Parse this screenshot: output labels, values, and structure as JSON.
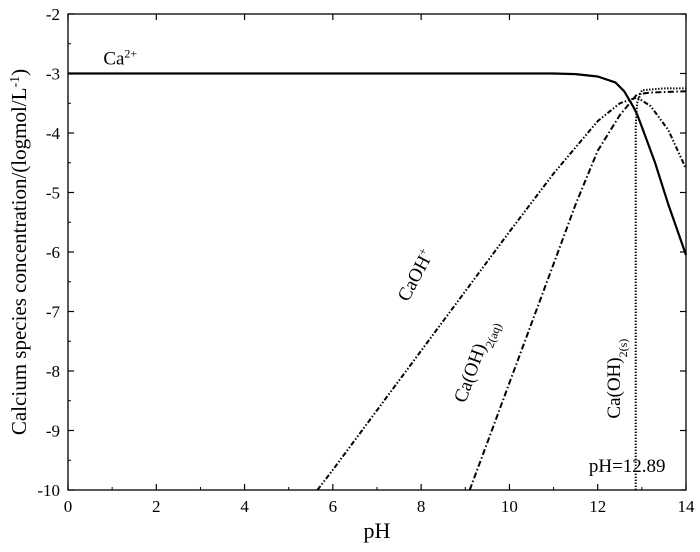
{
  "chart_data": {
    "type": "line",
    "xlabel": "pH",
    "ylabel": "Calcium species concentration/(logmol/L",
    "ylabel_sup": "-1",
    "ylabel_end": ")",
    "xlim": [
      0,
      14
    ],
    "ylim": [
      -10,
      -2
    ],
    "xticks": [
      0,
      2,
      4,
      6,
      8,
      10,
      12,
      14
    ],
    "yticks": [
      -2,
      -3,
      -4,
      -5,
      -6,
      -7,
      -8,
      -9,
      -10
    ],
    "grid": false,
    "legend": "none",
    "series": [
      {
        "name": "Ca2+",
        "style": "solid",
        "points": [
          [
            0,
            -3
          ],
          [
            11,
            -3
          ],
          [
            11.5,
            -3.01
          ],
          [
            12,
            -3.05
          ],
          [
            12.4,
            -3.15
          ],
          [
            12.6,
            -3.3
          ],
          [
            12.8,
            -3.55
          ],
          [
            12.89,
            -3.68
          ],
          [
            13.0,
            -3.9
          ],
          [
            13.3,
            -4.5
          ],
          [
            13.6,
            -5.2
          ],
          [
            14,
            -6.05
          ]
        ]
      },
      {
        "name": "CaOH+",
        "style": "dash-dot-dot",
        "points": [
          [
            5.65,
            -10
          ],
          [
            6,
            -9.66
          ],
          [
            8,
            -7.66
          ],
          [
            10,
            -5.66
          ],
          [
            11,
            -4.68
          ],
          [
            12,
            -3.8
          ],
          [
            12.5,
            -3.5
          ],
          [
            12.89,
            -3.4
          ],
          [
            13.2,
            -3.55
          ],
          [
            13.6,
            -3.95
          ],
          [
            14,
            -4.6
          ]
        ]
      },
      {
        "name": "Ca(OH)2(aq)",
        "style": "dash-dot",
        "points": [
          [
            9.1,
            -10
          ],
          [
            9.5,
            -9.2
          ],
          [
            10,
            -8.2
          ],
          [
            10.5,
            -7.2
          ],
          [
            11,
            -6.2
          ],
          [
            11.5,
            -5.2
          ],
          [
            12,
            -4.3
          ],
          [
            12.5,
            -3.7
          ],
          [
            12.89,
            -3.35
          ],
          [
            13.2,
            -3.32
          ],
          [
            14,
            -3.3
          ]
        ]
      },
      {
        "name": "Ca(OH)2(s)",
        "style": "dotted",
        "points": [
          [
            12.86,
            -10
          ],
          [
            12.86,
            -3.9
          ],
          [
            12.89,
            -3.5
          ],
          [
            13.0,
            -3.28
          ],
          [
            13.5,
            -3.25
          ],
          [
            14,
            -3.25
          ]
        ]
      }
    ],
    "annotations": [
      {
        "text": "Ca",
        "sup": "2+",
        "x": 0.8,
        "y": -2.85,
        "rotate": 0
      },
      {
        "text": "CaOH",
        "sup": "+",
        "x": 7.7,
        "y": -6.85,
        "rotate": -62
      },
      {
        "text": "Ca(OH)",
        "sub": "2(aq)",
        "x": 9.0,
        "y": -8.55,
        "rotate": -70
      },
      {
        "text": "Ca(OH)",
        "sub": "2(s)",
        "x": 12.5,
        "y": -8.8,
        "rotate": -90
      },
      {
        "text": "pH=12.89",
        "x": 11.8,
        "y": -9.7,
        "rotate": 0
      }
    ],
    "colors": {
      "line": "#000000",
      "axis": "#000000",
      "background": "#ffffff"
    }
  }
}
